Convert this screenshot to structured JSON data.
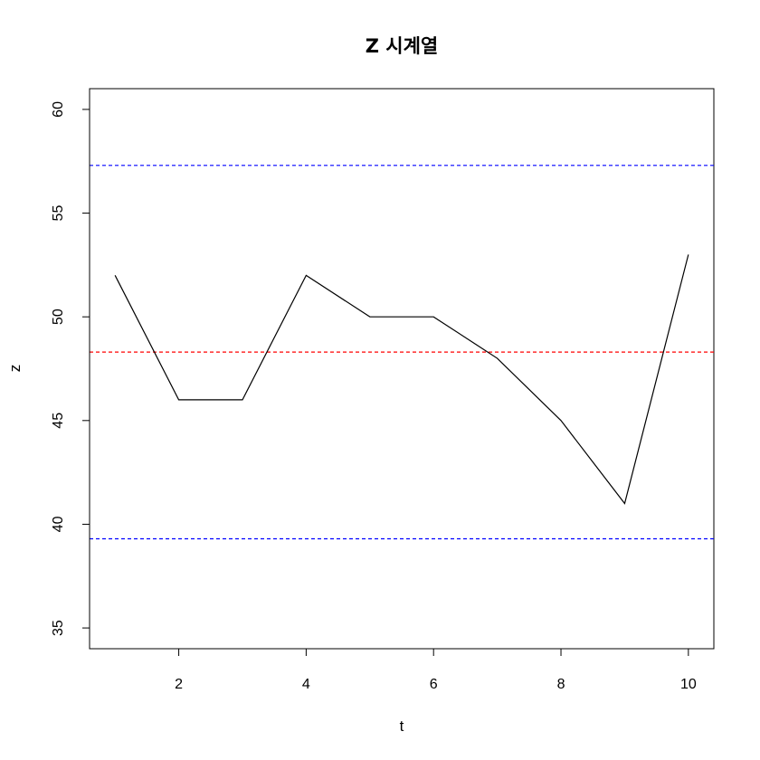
{
  "chart_data": {
    "type": "line",
    "title": "Z 시계열",
    "xlabel": "t",
    "ylabel": "z",
    "xlim": [
      0.6,
      10.4
    ],
    "ylim": [
      34,
      61
    ],
    "xticks": [
      2,
      4,
      6,
      8,
      10
    ],
    "yticks": [
      35,
      40,
      45,
      50,
      55,
      60
    ],
    "grid": false,
    "series": [
      {
        "x": [
          1,
          2,
          3,
          4,
          5,
          6,
          7,
          8,
          9,
          10
        ],
        "values": [
          52,
          46,
          46,
          52,
          50,
          50,
          48,
          45,
          41,
          53
        ],
        "color": "#000000"
      }
    ],
    "hlines": [
      {
        "y": 57.3,
        "color": "#0000ff",
        "style": "dashed"
      },
      {
        "y": 48.3,
        "color": "#ff0000",
        "style": "dashed"
      },
      {
        "y": 39.3,
        "color": "#0000ff",
        "style": "dashed"
      }
    ]
  }
}
